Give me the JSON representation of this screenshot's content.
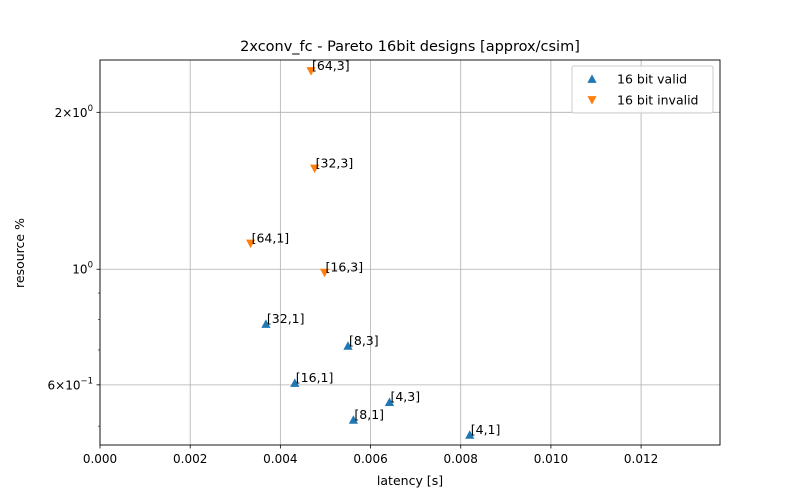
{
  "chart_data": {
    "type": "scatter",
    "title": "2xconv_fc - Pareto 16bit designs [approx/csim]",
    "xlabel": "latency [s]",
    "ylabel": "resource %",
    "xlim": [
      0,
      0.01375
    ],
    "ylim": [
      0.46,
      2.52
    ],
    "yscale": "log",
    "grid": true,
    "legend_position": "top-right",
    "x_ticks": [
      {
        "value": 0.0,
        "label": "0.000"
      },
      {
        "value": 0.002,
        "label": "0.002"
      },
      {
        "value": 0.004,
        "label": "0.004"
      },
      {
        "value": 0.006,
        "label": "0.006"
      },
      {
        "value": 0.008,
        "label": "0.008"
      },
      {
        "value": 0.01,
        "label": "0.010"
      },
      {
        "value": 0.012,
        "label": "0.012"
      }
    ],
    "y_major_ticks": [
      {
        "value": 1.0,
        "label": "10^0",
        "base": "10",
        "exp": "0",
        "coef": ""
      },
      {
        "value": 2.0,
        "label": "2×10^0",
        "base": "10",
        "exp": "0",
        "coef": "2×"
      },
      {
        "value": 0.6,
        "label": "6×10^-1",
        "base": "10",
        "exp": "−1",
        "coef": "6×"
      }
    ],
    "y_minor_ticks": [
      0.5,
      0.7,
      0.8,
      0.9
    ],
    "series": [
      {
        "name": "16 bit valid",
        "marker": "triangle-up",
        "color": "#1f77b4",
        "points": [
          {
            "x": 0.00368,
            "y": 0.785,
            "label": "[32,1]"
          },
          {
            "x": 0.0055,
            "y": 0.713,
            "label": "[8,3]"
          },
          {
            "x": 0.00432,
            "y": 0.605,
            "label": "[16,1]"
          },
          {
            "x": 0.00642,
            "y": 0.556,
            "label": "[4,3]"
          },
          {
            "x": 0.00562,
            "y": 0.514,
            "label": "[8,1]"
          },
          {
            "x": 0.0082,
            "y": 0.481,
            "label": "[4,1]"
          }
        ]
      },
      {
        "name": "16 bit invalid",
        "marker": "triangle-down",
        "color": "#ff7f0e",
        "points": [
          {
            "x": 0.00468,
            "y": 2.4,
            "label": "[64,3]"
          },
          {
            "x": 0.00476,
            "y": 1.56,
            "label": "[32,3]"
          },
          {
            "x": 0.00334,
            "y": 1.12,
            "label": "[64,1]"
          },
          {
            "x": 0.00498,
            "y": 0.985,
            "label": "[16,3]"
          }
        ]
      }
    ]
  }
}
